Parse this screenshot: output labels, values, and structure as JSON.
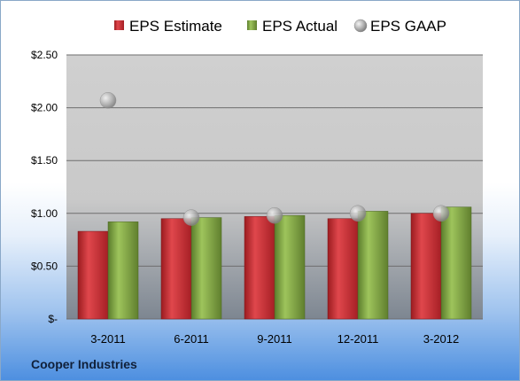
{
  "company": "Cooper Industries",
  "colors": {
    "estimate": "#c0272d",
    "actual": "#7fa43f",
    "gaap": "#b8b8b8"
  },
  "chart_data": {
    "type": "bar",
    "title": "",
    "xlabel": "",
    "ylabel": "",
    "categories": [
      "3-2011",
      "6-2011",
      "9-2011",
      "12-2011",
      "3-2012"
    ],
    "series": [
      {
        "name": "EPS Estimate",
        "kind": "bar",
        "values": [
          0.83,
          0.95,
          0.97,
          0.95,
          1.0
        ]
      },
      {
        "name": "EPS Actual",
        "kind": "bar",
        "values": [
          0.92,
          0.96,
          0.98,
          1.02,
          1.06
        ]
      },
      {
        "name": "EPS GAAP",
        "kind": "marker",
        "values": [
          2.07,
          0.96,
          0.98,
          1.0,
          1.0
        ]
      }
    ],
    "ylim": [
      0,
      2.5
    ],
    "yticks": [
      {
        "value": 2.5,
        "label": "$2.50"
      },
      {
        "value": 2.0,
        "label": "$2.00"
      },
      {
        "value": 1.5,
        "label": "$1.50"
      },
      {
        "value": 1.0,
        "label": "$1.00"
      },
      {
        "value": 0.5,
        "label": "$0.50"
      },
      {
        "value": 0,
        "label": "$-"
      }
    ],
    "grid": true,
    "legend": "top"
  }
}
